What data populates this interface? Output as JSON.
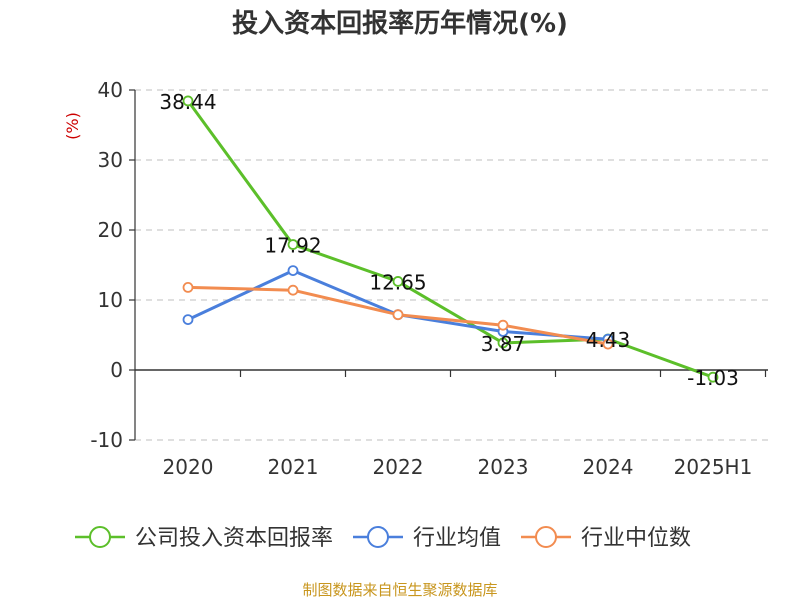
{
  "chart_data": {
    "type": "line",
    "title": "投入资本回报率历年情况(%)",
    "unit_label": "(%)",
    "categories": [
      "2020",
      "2021",
      "2022",
      "2023",
      "2024",
      "2025H1"
    ],
    "ylim": [
      -10,
      40
    ],
    "yticks": [
      40,
      30,
      20,
      10,
      0,
      -10
    ],
    "grid": true,
    "legend_position": "bottom",
    "series": [
      {
        "name": "公司投入资本回报率",
        "color": "#5cbf2a",
        "values": [
          38.44,
          17.92,
          12.65,
          3.87,
          4.43,
          -1.03
        ],
        "labels": [
          "38.44",
          "17.92",
          "12.65",
          "3.87",
          "4.43",
          "-1.03"
        ]
      },
      {
        "name": "行业均值",
        "color": "#4a7fdc",
        "values": [
          7.2,
          14.2,
          7.9,
          5.5,
          4.4,
          null
        ]
      },
      {
        "name": "行业中位数",
        "color": "#f28c50",
        "values": [
          11.8,
          11.4,
          7.9,
          6.4,
          3.7,
          null
        ]
      }
    ]
  },
  "source": "制图数据来自恒生聚源数据库"
}
